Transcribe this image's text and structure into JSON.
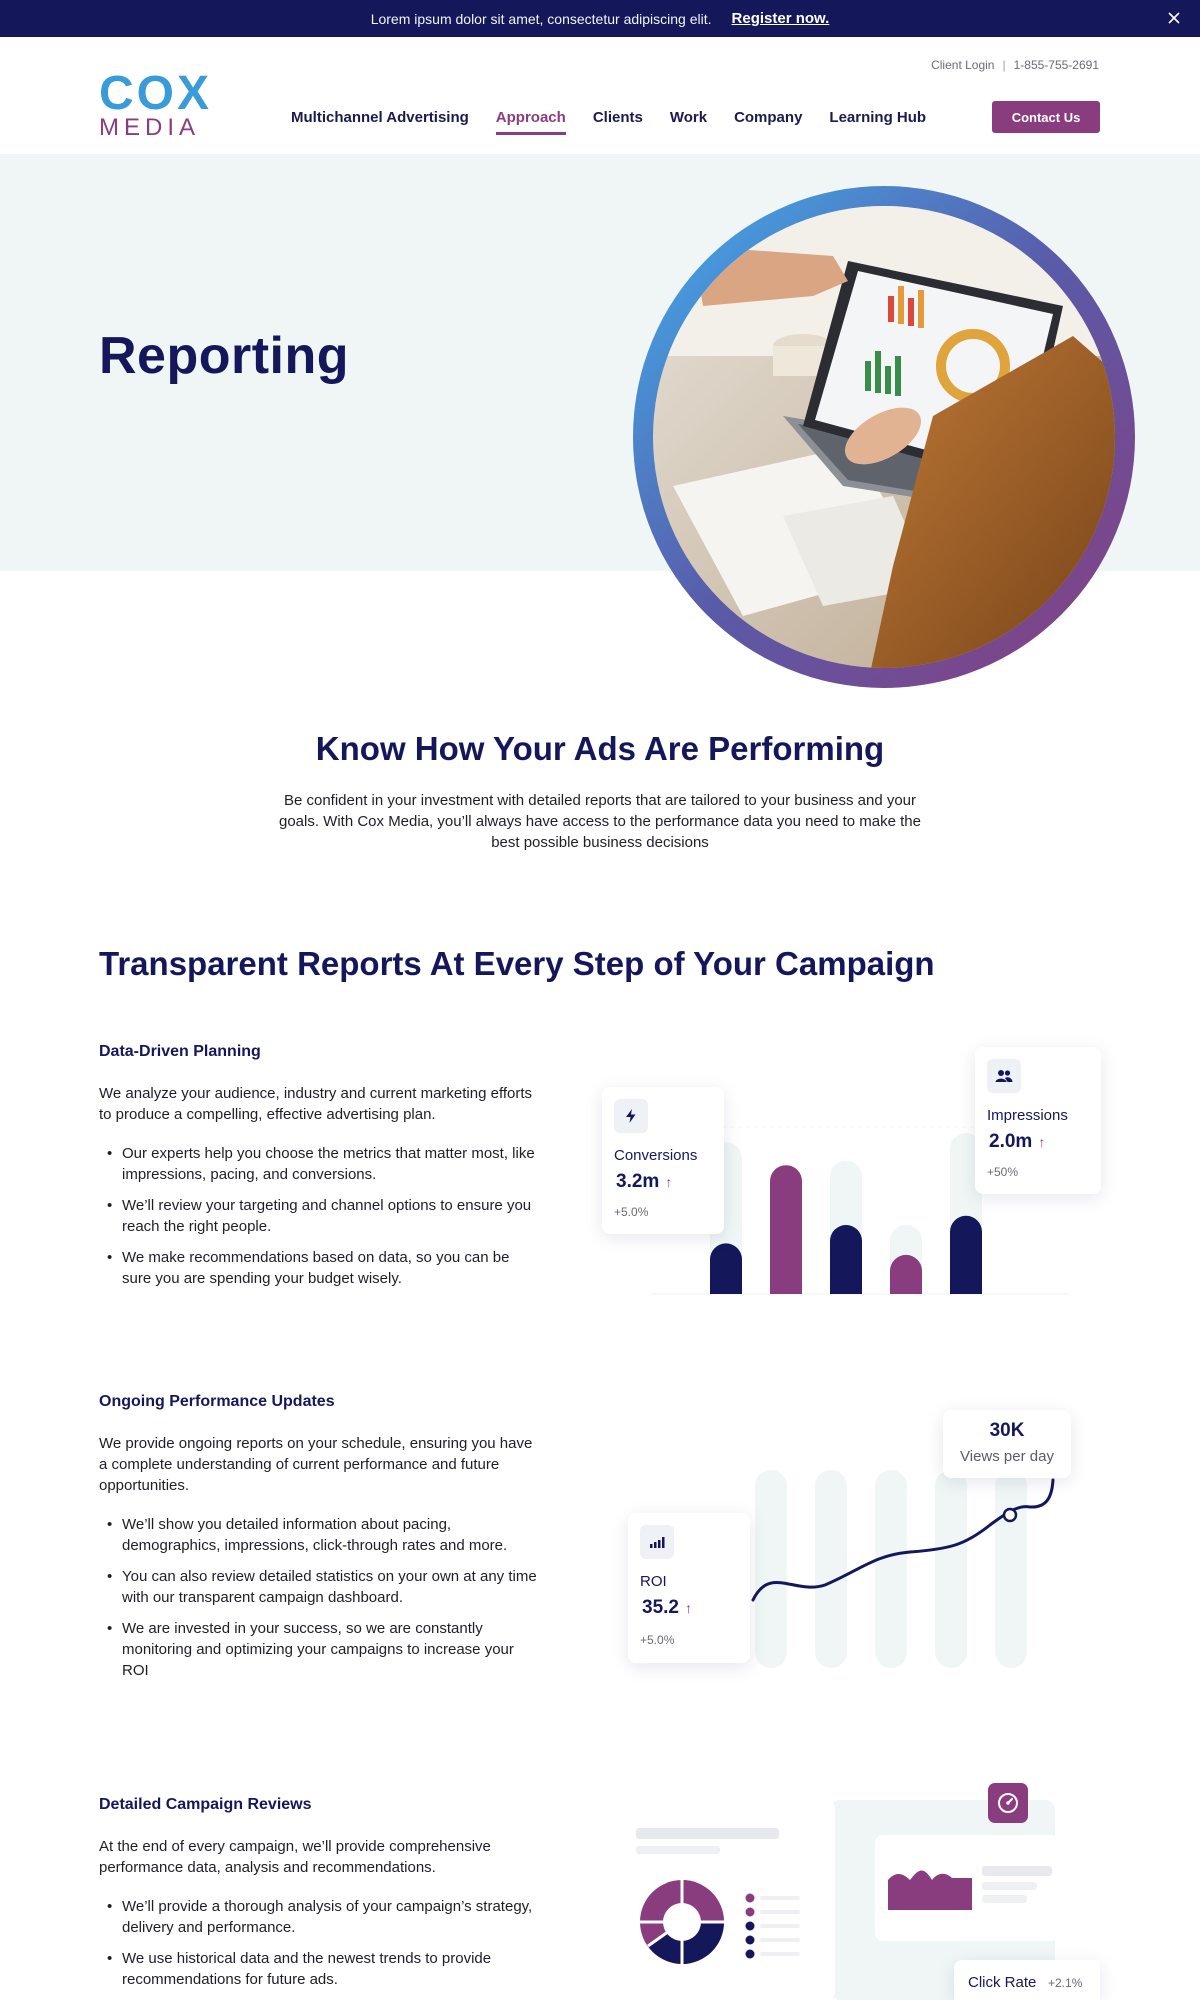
{
  "announcement": {
    "message": "Lorem ipsum dolor sit amet, consectetur adipiscing elit.",
    "link": "Register now."
  },
  "header": {
    "logo_top": "COX",
    "logo_bottom": "MEDIA",
    "client_login": "Client Login",
    "separator": "|",
    "phone": "1-855-755-2691",
    "nav": [
      "Multichannel Advertising",
      "Approach",
      "Clients",
      "Work",
      "Company",
      "Learning Hub"
    ],
    "active_nav": "Approach",
    "contact": "Contact Us"
  },
  "hero": {
    "title": "Reporting"
  },
  "intro": {
    "title": "Know How Your Ads Are Performing",
    "body": "Be confident in your investment with detailed reports that are tailored to your business and your goals. With Cox Media, you’ll always have access to the performance data you need to make the best possible business decisions"
  },
  "section_title": "Transparent Reports At Every Step of Your Campaign",
  "features": [
    {
      "title": "Data-Driven Planning",
      "body": "We analyze your audience, industry and current marketing efforts to produce a compelling, effective advertising plan.",
      "bullets": [
        "Our experts help you choose the metrics that matter most, like impressions, pacing, and conversions.",
        "We’ll review your targeting and channel options to ensure you reach the right people.",
        "We make recommendations based on data, so you can be sure you are spending your budget wisely."
      ]
    },
    {
      "title": "Ongoing Performance Updates",
      "body": "We provide ongoing reports on your schedule, ensuring you have a complete understanding of current performance and future opportunities.",
      "bullets": [
        "We’ll show you detailed information about pacing, demographics, impressions, click-through rates and more.",
        "You can also review detailed statistics on your own at any time with our transparent campaign dashboard.",
        "We are invested in your success, so we are constantly monitoring and optimizing your campaigns to increase your ROI"
      ]
    },
    {
      "title": "Detailed Campaign Reviews",
      "body": "At the end of every campaign, we’ll provide comprehensive performance data, analysis and recommendations.",
      "bullets": [
        "We’ll provide a thorough analysis of your campaign’s strategy, delivery and performance.",
        "We use historical data and the newest trends to provide recommendations for future ads."
      ]
    }
  ],
  "cards": {
    "conversions": {
      "label": "Conversions",
      "value": "3.2m",
      "arrow": "↑",
      "change": "+5.0%",
      "icon": "bolt-icon"
    },
    "impressions": {
      "label": "Impressions",
      "value": "2.0m",
      "arrow": "↑",
      "change": "+50%",
      "icon": "users-icon"
    },
    "views": {
      "value": "30K",
      "label": "Views per day"
    },
    "roi": {
      "label": "ROI",
      "value": "35.2",
      "arrow": "↑",
      "change": "+5.0%",
      "icon": "bar-chart-icon"
    },
    "click_rate": {
      "label": "Click Rate",
      "change": "+2.1%"
    },
    "dashboard_icon": "gauge-icon"
  },
  "colors": {
    "navy": "#14185a",
    "plum": "#8a3d7e",
    "blue": "#3a9bd9",
    "mint": "#eff6f5"
  },
  "illustration_bars": {
    "values": [
      0.22,
      0.56,
      0.3,
      0.17,
      0.34
    ],
    "colors": [
      "#14185a",
      "#8a3d7e",
      "#14185a",
      "#8a3d7e",
      "#14185a"
    ]
  }
}
